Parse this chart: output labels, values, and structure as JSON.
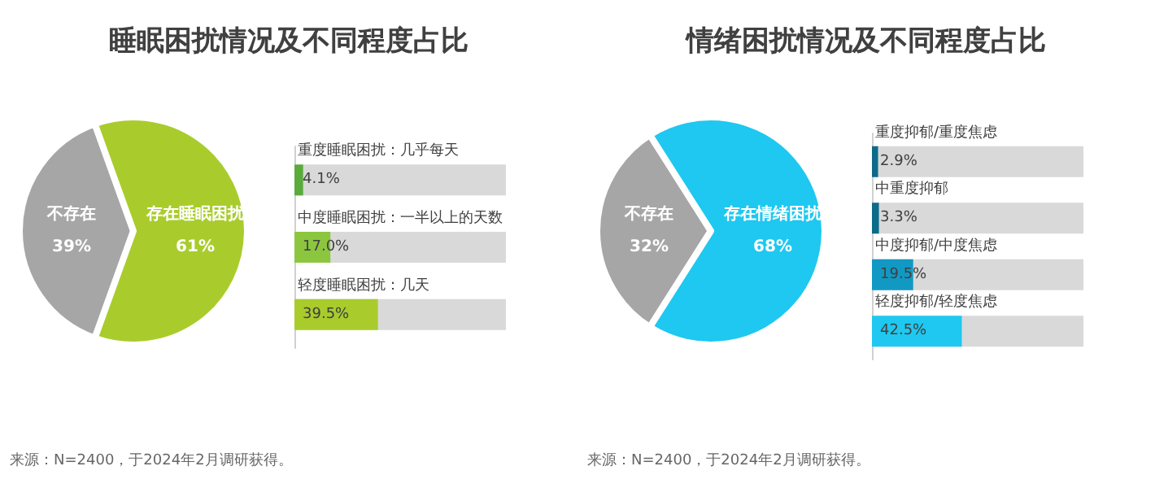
{
  "chart_data": [
    {
      "type": "pie",
      "title": "睡眠困扰情况及不同程度占比",
      "categories": [
        "不存在",
        "存在睡眠困扰"
      ],
      "values": [
        39,
        61
      ],
      "value_labels": [
        "39%",
        "61%"
      ],
      "colors": [
        "#a6a6a6",
        "#a9cc2c"
      ],
      "annotations": [
        "来源：N=2400，于2024年2月调研获得。"
      ]
    },
    {
      "type": "bar",
      "orientation": "horizontal",
      "categories": [
        "重度睡眠困扰：几乎每天",
        "中度睡眠困扰：一半以上的天数",
        "轻度睡眠困扰：几天"
      ],
      "values": [
        4.1,
        17.0,
        39.5
      ],
      "value_labels": [
        "4.1%",
        "17.0%",
        "39.5%"
      ],
      "colors": [
        "#5aab3c",
        "#8cc63f",
        "#a9cc2c"
      ],
      "xlim": [
        0,
        100
      ],
      "tick_labels": "y"
    },
    {
      "type": "pie",
      "title": "情绪困扰情况及不同程度占比",
      "categories": [
        "不存在",
        "存在情绪困扰"
      ],
      "values": [
        32,
        68
      ],
      "value_labels": [
        "32%",
        "68%"
      ],
      "colors": [
        "#a6a6a6",
        "#1ec8f0"
      ],
      "annotations": [
        "来源：N=2400，于2024年2月调研获得。"
      ]
    },
    {
      "type": "bar",
      "orientation": "horizontal",
      "categories": [
        "重度抑郁/重度焦虑",
        "中重度抑郁",
        "中度抑郁/中度焦虑",
        "轻度抑郁/轻度焦虑"
      ],
      "values": [
        2.9,
        3.3,
        19.5,
        42.5
      ],
      "value_labels": [
        "2.9%",
        "3.3%",
        "19.5%",
        "42.5%"
      ],
      "colors": [
        "#0d6b8a",
        "#0d6b8a",
        "#1199c4",
        "#1ec8f0"
      ],
      "xlim": [
        0,
        100
      ],
      "tick_labels": "y"
    }
  ]
}
